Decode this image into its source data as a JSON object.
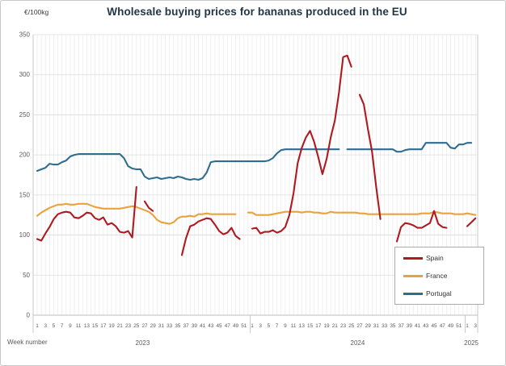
{
  "colors": {
    "grid_vertical": "#e9e9e9",
    "grid_horizontal": "#dcdcdc",
    "axis_line": "#bdbdbd",
    "tick_text": "#595959",
    "title_text": "#233645",
    "frame_border": "#c9c9c9"
  },
  "chart_data": {
    "type": "line",
    "title": "Wholesale buying prices for bananas produced in the EU",
    "y_unit_label": "€/100kg",
    "x_axis_label": "Week number",
    "ylim": [
      0,
      350
    ],
    "y_ticks": [
      0,
      50,
      100,
      150,
      200,
      250,
      300,
      350
    ],
    "grid": true,
    "legend_position": "lower-right",
    "x_axis": {
      "tick_step": 2,
      "years": [
        {
          "label": "2023",
          "weeks": 52
        },
        {
          "label": "2024",
          "weeks": 52
        },
        {
          "label": "2025",
          "weeks": 3
        }
      ]
    },
    "series": [
      {
        "name": "Spain",
        "color": "#ae1a1f",
        "values": [
          95,
          93,
          102,
          110,
          120,
          126,
          128,
          129,
          128,
          122,
          121,
          124,
          128,
          127,
          121,
          119,
          122,
          113,
          115,
          111,
          104,
          103,
          105,
          97,
          160,
          null,
          142,
          134,
          130,
          null,
          null,
          null,
          null,
          null,
          null,
          75,
          96,
          111,
          113,
          117,
          119,
          121,
          120,
          113,
          105,
          101,
          103,
          109,
          99,
          95,
          null,
          null,
          108,
          109,
          102,
          104,
          104,
          106,
          103,
          105,
          110,
          125,
          152,
          190,
          209,
          222,
          230,
          216,
          197,
          176,
          195,
          222,
          243,
          278,
          322,
          324,
          310,
          null,
          275,
          263,
          232,
          204,
          160,
          120,
          null,
          null,
          null,
          92,
          110,
          115,
          114,
          112,
          109,
          109,
          112,
          115,
          130,
          114,
          110,
          109,
          null,
          null,
          null,
          null,
          111,
          116,
          121
        ]
      },
      {
        "name": "France",
        "color": "#eaa23c",
        "values": [
          124,
          128,
          131,
          134,
          136,
          138,
          138,
          139,
          138,
          138,
          139,
          139,
          139,
          137,
          135,
          134,
          133,
          133,
          133,
          133,
          133,
          134,
          135,
          136,
          135,
          133,
          131,
          129,
          125,
          119,
          116,
          115,
          114,
          116,
          121,
          123,
          123,
          124,
          123,
          126,
          126,
          127,
          126,
          126,
          126,
          126,
          126,
          126,
          126,
          null,
          null,
          128,
          128,
          125,
          125,
          125,
          125,
          126,
          127,
          128,
          129,
          129,
          129,
          129,
          128,
          129,
          129,
          128,
          128,
          127,
          127,
          129,
          128,
          128,
          128,
          128,
          128,
          128,
          127,
          127,
          126,
          126,
          126,
          126,
          126,
          126,
          126,
          126,
          126,
          126,
          126,
          126,
          126,
          127,
          127,
          127,
          129,
          128,
          127,
          127,
          127,
          126,
          126,
          126,
          127,
          126,
          125
        ]
      },
      {
        "name": "Portugal",
        "color": "#2f6d8f",
        "values": [
          180,
          182,
          184,
          189,
          188,
          188,
          191,
          193,
          198,
          200,
          201,
          201,
          201,
          201,
          201,
          201,
          201,
          201,
          201,
          201,
          201,
          196,
          186,
          183,
          182,
          182,
          173,
          170,
          171,
          172,
          170,
          171,
          172,
          171,
          173,
          172,
          170,
          169,
          170,
          169,
          171,
          178,
          191,
          192,
          192,
          192,
          192,
          192,
          192,
          192,
          192,
          192,
          192,
          192,
          192,
          192,
          193,
          196,
          202,
          206,
          207,
          207,
          207,
          207,
          207,
          207,
          207,
          207,
          207,
          207,
          207,
          207,
          207,
          207,
          null,
          207,
          207,
          207,
          207,
          207,
          207,
          207,
          207,
          207,
          207,
          207,
          207,
          204,
          204,
          206,
          207,
          207,
          207,
          207,
          215,
          215,
          215,
          215,
          215,
          215,
          209,
          208,
          213,
          213,
          215,
          215,
          null
        ]
      }
    ]
  }
}
